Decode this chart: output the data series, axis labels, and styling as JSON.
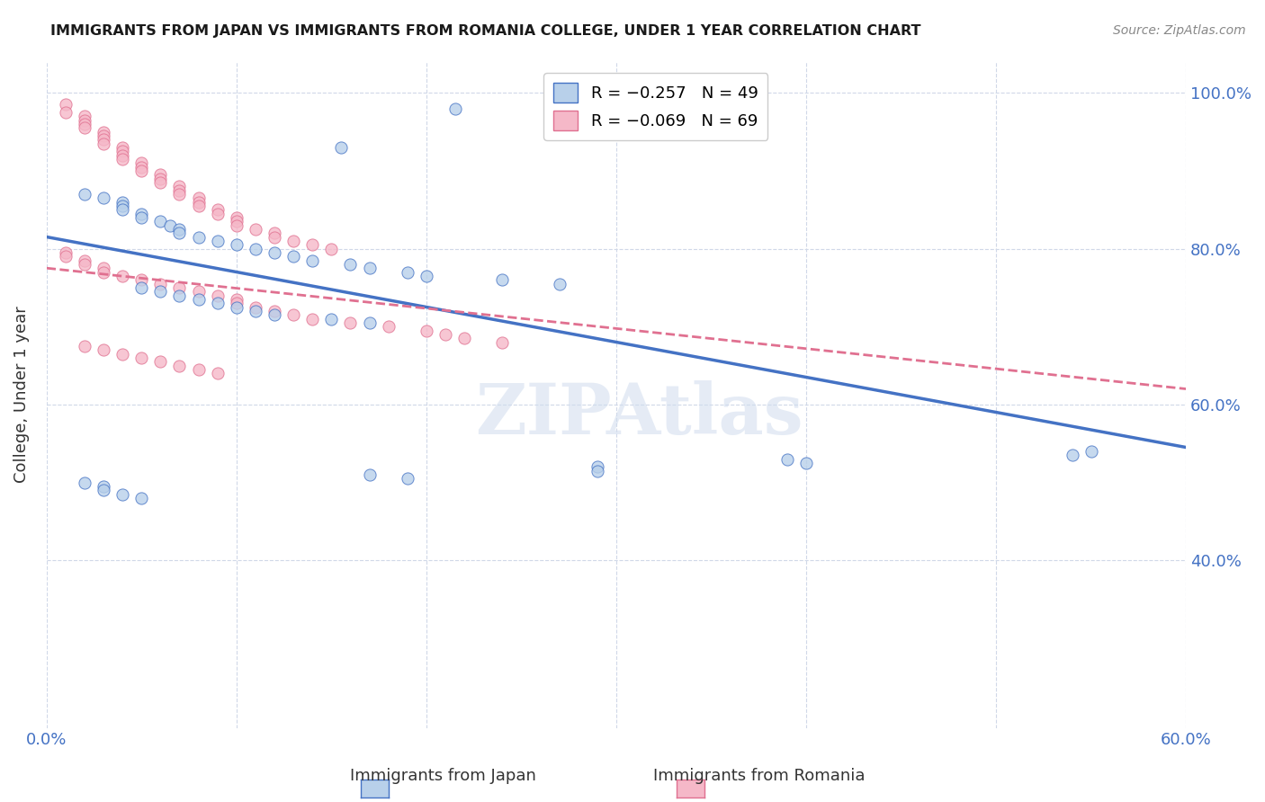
{
  "title": "IMMIGRANTS FROM JAPAN VS IMMIGRANTS FROM ROMANIA COLLEGE, UNDER 1 YEAR CORRELATION CHART",
  "source": "Source: ZipAtlas.com",
  "ylabel": "College, Under 1 year",
  "x_min": 0.0,
  "x_max": 0.6,
  "y_min": 0.185,
  "y_max": 1.04,
  "x_ticks": [
    0.0,
    0.1,
    0.2,
    0.3,
    0.4,
    0.5,
    0.6
  ],
  "x_tick_labels": [
    "0.0%",
    "",
    "",
    "",
    "",
    "",
    "60.0%"
  ],
  "y_ticks": [
    0.4,
    0.6,
    0.8,
    1.0
  ],
  "y_tick_labels": [
    "40.0%",
    "60.0%",
    "80.0%",
    "100.0%"
  ],
  "legend_japan_label": "R = −0.257   N = 49",
  "legend_romania_label": "R = −0.069   N = 69",
  "color_japan": "#b8d0ea",
  "color_romania": "#f5b8c8",
  "color_japan_line": "#4472c4",
  "color_romania_line": "#e07090",
  "japan_scatter_x": [
    0.215,
    0.155,
    0.02,
    0.03,
    0.04,
    0.04,
    0.04,
    0.05,
    0.05,
    0.06,
    0.065,
    0.07,
    0.07,
    0.08,
    0.09,
    0.1,
    0.11,
    0.12,
    0.13,
    0.14,
    0.16,
    0.17,
    0.19,
    0.2,
    0.24,
    0.27,
    0.05,
    0.06,
    0.07,
    0.08,
    0.09,
    0.1,
    0.11,
    0.12,
    0.15,
    0.17,
    0.55,
    0.54,
    0.39,
    0.4,
    0.29,
    0.29,
    0.17,
    0.19,
    0.02,
    0.03,
    0.03,
    0.04,
    0.05
  ],
  "japan_scatter_y": [
    0.98,
    0.93,
    0.87,
    0.865,
    0.86,
    0.855,
    0.85,
    0.845,
    0.84,
    0.835,
    0.83,
    0.825,
    0.82,
    0.815,
    0.81,
    0.805,
    0.8,
    0.795,
    0.79,
    0.785,
    0.78,
    0.775,
    0.77,
    0.765,
    0.76,
    0.755,
    0.75,
    0.745,
    0.74,
    0.735,
    0.73,
    0.725,
    0.72,
    0.715,
    0.71,
    0.705,
    0.54,
    0.535,
    0.53,
    0.525,
    0.52,
    0.515,
    0.51,
    0.505,
    0.5,
    0.495,
    0.49,
    0.485,
    0.48
  ],
  "romania_scatter_x": [
    0.01,
    0.01,
    0.02,
    0.02,
    0.02,
    0.02,
    0.03,
    0.03,
    0.03,
    0.03,
    0.04,
    0.04,
    0.04,
    0.04,
    0.05,
    0.05,
    0.05,
    0.06,
    0.06,
    0.06,
    0.07,
    0.07,
    0.07,
    0.08,
    0.08,
    0.08,
    0.09,
    0.09,
    0.1,
    0.1,
    0.1,
    0.11,
    0.12,
    0.12,
    0.13,
    0.14,
    0.15,
    0.01,
    0.01,
    0.02,
    0.02,
    0.03,
    0.03,
    0.04,
    0.05,
    0.06,
    0.07,
    0.08,
    0.09,
    0.1,
    0.1,
    0.11,
    0.12,
    0.13,
    0.14,
    0.16,
    0.18,
    0.2,
    0.21,
    0.22,
    0.24,
    0.02,
    0.03,
    0.04,
    0.05,
    0.06,
    0.07,
    0.08,
    0.09
  ],
  "romania_scatter_y": [
    0.985,
    0.975,
    0.97,
    0.965,
    0.96,
    0.955,
    0.95,
    0.945,
    0.94,
    0.935,
    0.93,
    0.925,
    0.92,
    0.915,
    0.91,
    0.905,
    0.9,
    0.895,
    0.89,
    0.885,
    0.88,
    0.875,
    0.87,
    0.865,
    0.86,
    0.855,
    0.85,
    0.845,
    0.84,
    0.835,
    0.83,
    0.825,
    0.82,
    0.815,
    0.81,
    0.805,
    0.8,
    0.795,
    0.79,
    0.785,
    0.78,
    0.775,
    0.77,
    0.765,
    0.76,
    0.755,
    0.75,
    0.745,
    0.74,
    0.735,
    0.73,
    0.725,
    0.72,
    0.715,
    0.71,
    0.705,
    0.7,
    0.695,
    0.69,
    0.685,
    0.68,
    0.675,
    0.67,
    0.665,
    0.66,
    0.655,
    0.65,
    0.645,
    0.64
  ],
  "japan_line_x0": 0.0,
  "japan_line_y0": 0.815,
  "japan_line_x1": 0.6,
  "japan_line_y1": 0.545,
  "romania_line_x0": 0.0,
  "romania_line_y0": 0.775,
  "romania_line_x1": 0.6,
  "romania_line_y1": 0.62,
  "watermark": "ZIPAtlas",
  "title_color": "#1a1a1a",
  "axis_color": "#4472c4",
  "grid_color": "#d0d8e8",
  "background_color": "#ffffff"
}
